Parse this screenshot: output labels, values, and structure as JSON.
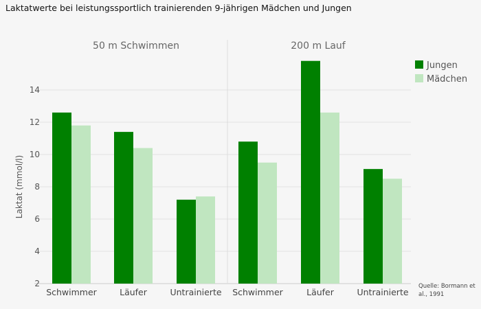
{
  "chart_data": {
    "type": "bar",
    "title": "Laktatwerte bei leistungssportlich trainierenden 9-jährigen Mädchen und Jungen",
    "ylabel": "Laktat (mmol/l)",
    "xlabel": "",
    "ylim": [
      2,
      16
    ],
    "yticks": [
      2,
      4,
      6,
      8,
      10,
      12,
      14
    ],
    "panels": [
      {
        "title": "50 m Schwimmen",
        "categories": [
          "Schwimmer",
          "Läufer",
          "Untrainierte"
        ],
        "series": [
          {
            "name": "Jungen",
            "values": [
              12.6,
              11.4,
              7.2
            ]
          },
          {
            "name": "Mädchen",
            "values": [
              11.8,
              10.4,
              7.4
            ]
          }
        ]
      },
      {
        "title": "200 m Lauf",
        "categories": [
          "Schwimmer",
          "Läufer",
          "Untrainierte"
        ],
        "series": [
          {
            "name": "Jungen",
            "values": [
              10.8,
              15.8,
              9.1
            ]
          },
          {
            "name": "Mädchen",
            "values": [
              9.5,
              12.6,
              8.5
            ]
          }
        ]
      }
    ],
    "legend": {
      "position": "top-right",
      "entries": [
        "Jungen",
        "Mädchen"
      ]
    },
    "colors": {
      "Jungen": "#008000",
      "Mädchen": "#c0e6c0"
    },
    "grid": true,
    "source": "Quelle: Bormann et al., 1991"
  }
}
